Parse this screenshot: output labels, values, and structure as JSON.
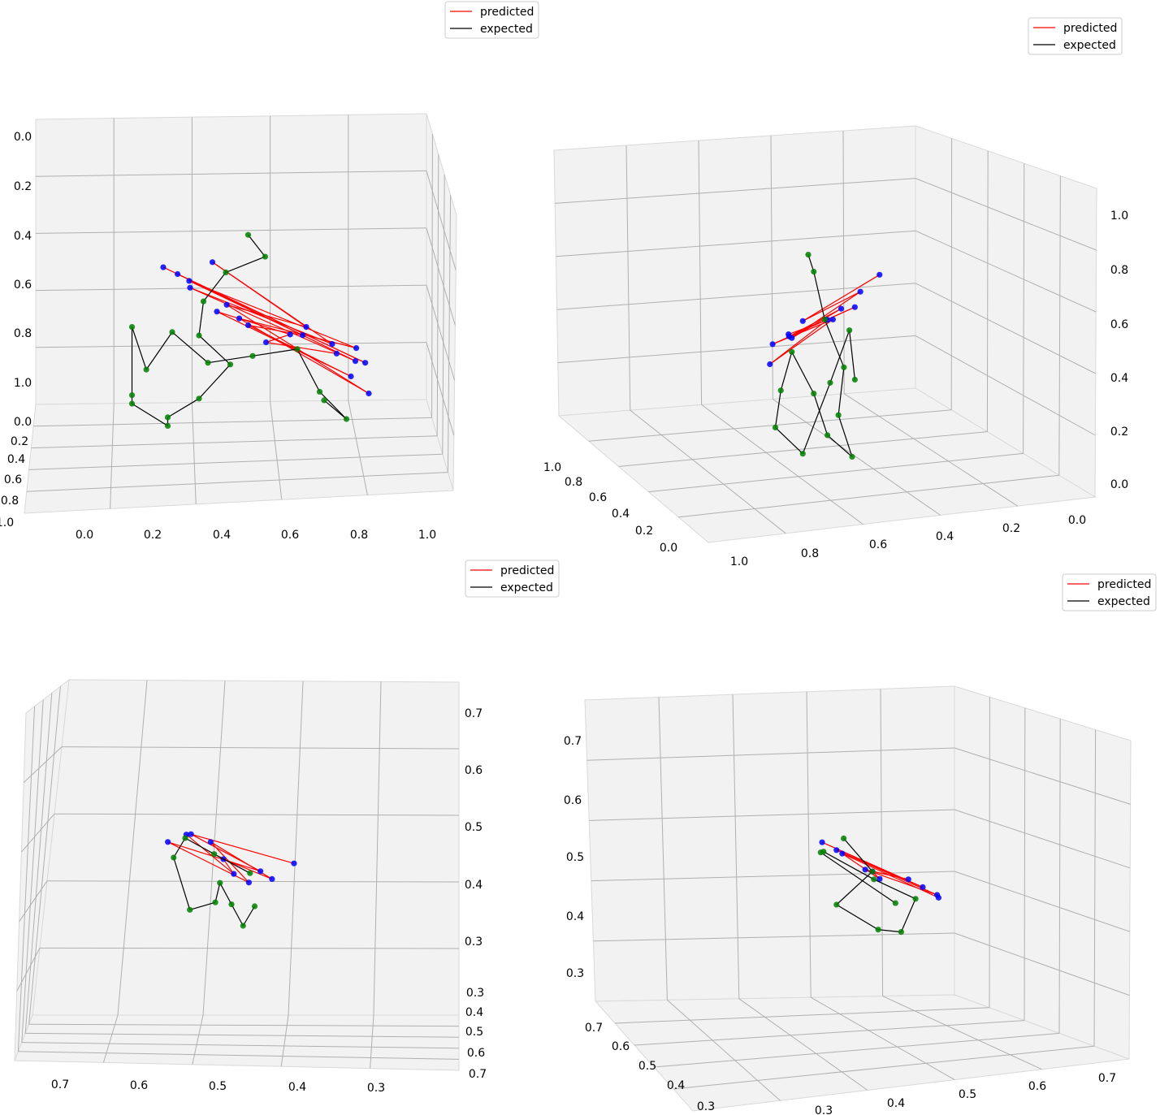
{
  "figure": {
    "background": "#ffffff"
  },
  "colors": {
    "predicted": "#ff0000",
    "expected": "#000000",
    "pred_points": "#0000ff",
    "exp_points": "#008000",
    "pane": "#f2f2f2",
    "grid": "#b0b0b0",
    "axis": "#000000"
  },
  "chart_data": [
    {
      "type": "scatter",
      "subtype": "3d-line-scatter",
      "legend": {
        "entries": [
          {
            "label": "predicted",
            "color": "#ff0000"
          },
          {
            "label": "expected",
            "color": "#000000"
          }
        ],
        "placement": "top-center"
      },
      "x_ticks": [
        "0.0",
        "0.2",
        "0.4",
        "0.6",
        "0.8",
        "1.0"
      ],
      "y_ticks": [
        "0.0",
        "0.2",
        "0.4",
        "0.6",
        "0.8",
        "1.0"
      ],
      "z_ticks": [
        "0.0",
        "0.2",
        "0.4",
        "0.6",
        "0.8",
        "1.0"
      ],
      "xlim": [
        0,
        1
      ],
      "ylim": [
        0,
        1
      ],
      "zlim": [
        0,
        1
      ],
      "grid": true,
      "series": [
        {
          "name": "predicted",
          "marker_color": "#0000ff",
          "line_color": "#ff0000",
          "points": [
            [
              0.05,
              0.95,
              0.9
            ],
            [
              0.92,
              0.6,
              0.35
            ],
            [
              0.12,
              0.9,
              0.85
            ],
            [
              0.85,
              0.7,
              0.4
            ],
            [
              0.2,
              0.8,
              0.75
            ],
            [
              0.78,
              0.65,
              0.45
            ],
            [
              0.25,
              0.9,
              0.9
            ],
            [
              0.7,
              0.6,
              0.5
            ],
            [
              0.32,
              0.85,
              0.7
            ],
            [
              0.95,
              0.55,
              0.2
            ],
            [
              0.4,
              0.75,
              0.6
            ],
            [
              0.88,
              0.62,
              0.42
            ],
            [
              0.18,
              0.85,
              0.8
            ],
            [
              0.66,
              0.68,
              0.5
            ],
            [
              0.45,
              0.7,
              0.55
            ],
            [
              0.9,
              0.5,
              0.25
            ],
            [
              0.3,
              0.8,
              0.65
            ],
            [
              0.6,
              0.72,
              0.52
            ],
            [
              0.5,
              0.75,
              0.5
            ],
            [
              0.82,
              0.58,
              0.38
            ]
          ]
        },
        {
          "name": "expected",
          "marker_color": "#008000",
          "line_color": "#000000",
          "points": [
            [
              0.55,
              0.4,
              0.8
            ],
            [
              0.62,
              0.38,
              0.7
            ],
            [
              0.5,
              0.3,
              0.6
            ],
            [
              0.4,
              0.35,
              0.5
            ],
            [
              0.35,
              0.45,
              0.4
            ],
            [
              0.45,
              0.5,
              0.3
            ],
            [
              0.3,
              0.6,
              0.2
            ],
            [
              0.2,
              0.55,
              0.1
            ],
            [
              0.25,
              0.4,
              0.0
            ],
            [
              0.15,
              0.3,
              0.05
            ],
            [
              0.1,
              0.45,
              0.15
            ],
            [
              0.05,
              0.6,
              0.5
            ],
            [
              0.12,
              0.55,
              0.3
            ],
            [
              0.3,
              0.3,
              0.35
            ],
            [
              0.45,
              0.25,
              0.2
            ],
            [
              0.6,
              0.3,
              0.25
            ],
            [
              0.75,
              0.35,
              0.3
            ],
            [
              0.85,
              0.3,
              0.1
            ],
            [
              0.9,
              0.45,
              0.05
            ],
            [
              0.8,
              0.5,
              0.15
            ]
          ]
        }
      ]
    },
    {
      "type": "scatter",
      "subtype": "3d-line-scatter",
      "legend": {
        "entries": [
          {
            "label": "predicted",
            "color": "#ff0000"
          },
          {
            "label": "expected",
            "color": "#000000"
          }
        ],
        "placement": "top-right"
      },
      "x_ticks": [
        "1.0",
        "0.8",
        "0.6",
        "0.4",
        "0.2",
        "0.0"
      ],
      "y_ticks": [
        "1.0",
        "0.8",
        "0.6",
        "0.4",
        "0.2",
        "0.0"
      ],
      "z_ticks": [
        "0.0",
        "0.2",
        "0.4",
        "0.6",
        "0.8",
        "1.0"
      ],
      "xlim": [
        0,
        1
      ],
      "ylim": [
        0,
        1
      ],
      "zlim": [
        0,
        1
      ],
      "grid": true,
      "series": [
        {
          "name": "predicted",
          "marker_color": "#0000ff",
          "line_color": "#ff0000",
          "points": [
            [
              0.9,
              0.6,
              0.85
            ],
            [
              0.5,
              0.4,
              0.55
            ],
            [
              0.8,
              0.55,
              0.75
            ],
            [
              0.45,
              0.35,
              0.45
            ],
            [
              0.7,
              0.5,
              0.65
            ],
            [
              0.4,
              0.45,
              0.5
            ],
            [
              0.75,
              0.6,
              0.7
            ],
            [
              0.35,
              0.3,
              0.4
            ],
            [
              0.65,
              0.5,
              0.6
            ],
            [
              0.3,
              0.4,
              0.35
            ],
            [
              0.6,
              0.55,
              0.62
            ],
            [
              0.42,
              0.38,
              0.48
            ]
          ]
        },
        {
          "name": "expected",
          "marker_color": "#008000",
          "line_color": "#000000",
          "points": [
            [
              0.5,
              0.5,
              0.9
            ],
            [
              0.55,
              0.45,
              0.8
            ],
            [
              0.6,
              0.5,
              0.6
            ],
            [
              0.7,
              0.55,
              0.4
            ],
            [
              0.65,
              0.6,
              0.2
            ],
            [
              0.7,
              0.7,
              0.05
            ],
            [
              0.55,
              0.7,
              0.15
            ],
            [
              0.5,
              0.6,
              0.3
            ],
            [
              0.4,
              0.5,
              0.45
            ],
            [
              0.35,
              0.45,
              0.25
            ],
            [
              0.3,
              0.5,
              0.1
            ],
            [
              0.45,
              0.55,
              0.0
            ],
            [
              0.6,
              0.6,
              0.35
            ],
            [
              0.75,
              0.5,
              0.55
            ],
            [
              0.8,
              0.45,
              0.3
            ]
          ]
        }
      ]
    },
    {
      "type": "scatter",
      "subtype": "3d-line-scatter",
      "legend": {
        "entries": [
          {
            "label": "predicted",
            "color": "#ff0000"
          },
          {
            "label": "expected",
            "color": "#000000"
          }
        ],
        "placement": "top-center"
      },
      "x_ticks": [
        "0.7",
        "0.6",
        "0.5",
        "0.4",
        "0.3"
      ],
      "y_ticks": [
        "0.3",
        "0.4",
        "0.5",
        "0.6",
        "0.7"
      ],
      "z_ticks": [
        "0.3",
        "0.4",
        "0.5",
        "0.6",
        "0.7"
      ],
      "grid": true,
      "series": [
        {
          "name": "predicted",
          "marker_color": "#0000ff",
          "line_color": "#ff0000",
          "points": [
            [
              0.68,
              0.5,
              0.55
            ],
            [
              0.35,
              0.6,
              0.7
            ],
            [
              0.6,
              0.45,
              0.5
            ],
            [
              0.3,
              0.55,
              0.65
            ],
            [
              0.55,
              0.5,
              0.48
            ],
            [
              0.4,
              0.62,
              0.68
            ],
            [
              0.65,
              0.4,
              0.45
            ],
            [
              0.45,
              0.58,
              0.6
            ],
            [
              0.5,
              0.52,
              0.52
            ],
            [
              0.32,
              0.65,
              0.72
            ]
          ]
        },
        {
          "name": "expected",
          "marker_color": "#008000",
          "line_color": "#000000",
          "points": [
            [
              0.6,
              0.4,
              0.35
            ],
            [
              0.55,
              0.45,
              0.3
            ],
            [
              0.5,
              0.5,
              0.4
            ],
            [
              0.45,
              0.55,
              0.5
            ],
            [
              0.42,
              0.6,
              0.45
            ],
            [
              0.38,
              0.5,
              0.38
            ],
            [
              0.35,
              0.45,
              0.55
            ],
            [
              0.4,
              0.4,
              0.6
            ],
            [
              0.5,
              0.35,
              0.52
            ],
            [
              0.58,
              0.42,
              0.48
            ]
          ]
        }
      ]
    },
    {
      "type": "scatter",
      "subtype": "3d-line-scatter",
      "legend": {
        "entries": [
          {
            "label": "predicted",
            "color": "#ff0000"
          },
          {
            "label": "expected",
            "color": "#000000"
          }
        ],
        "placement": "top-right"
      },
      "x_ticks": [
        "0.3",
        "0.4",
        "0.5",
        "0.6",
        "0.7"
      ],
      "y_ticks": [
        "0.7",
        "0.6",
        "0.5",
        "0.4",
        "0.3"
      ],
      "z_ticks": [
        "0.3",
        "0.4",
        "0.5",
        "0.6",
        "0.7"
      ],
      "grid": true,
      "series": [
        {
          "name": "predicted",
          "marker_color": "#0000ff",
          "line_color": "#ff0000",
          "points": [
            [
              0.35,
              0.6,
              0.7
            ],
            [
              0.65,
              0.4,
              0.45
            ],
            [
              0.4,
              0.55,
              0.65
            ],
            [
              0.7,
              0.35,
              0.4
            ],
            [
              0.45,
              0.6,
              0.6
            ],
            [
              0.6,
              0.45,
              0.5
            ],
            [
              0.5,
              0.5,
              0.55
            ],
            [
              0.55,
              0.4,
              0.48
            ],
            [
              0.38,
              0.65,
              0.68
            ],
            [
              0.68,
              0.42,
              0.42
            ]
          ]
        },
        {
          "name": "expected",
          "marker_color": "#008000",
          "line_color": "#000000",
          "points": [
            [
              0.45,
              0.45,
              0.65
            ],
            [
              0.5,
              0.5,
              0.55
            ],
            [
              0.4,
              0.55,
              0.45
            ],
            [
              0.48,
              0.6,
              0.38
            ],
            [
              0.55,
              0.55,
              0.35
            ],
            [
              0.6,
              0.5,
              0.45
            ],
            [
              0.52,
              0.45,
              0.5
            ],
            [
              0.42,
              0.4,
              0.58
            ],
            [
              0.38,
              0.5,
              0.62
            ],
            [
              0.58,
              0.42,
              0.4
            ]
          ]
        }
      ]
    }
  ]
}
